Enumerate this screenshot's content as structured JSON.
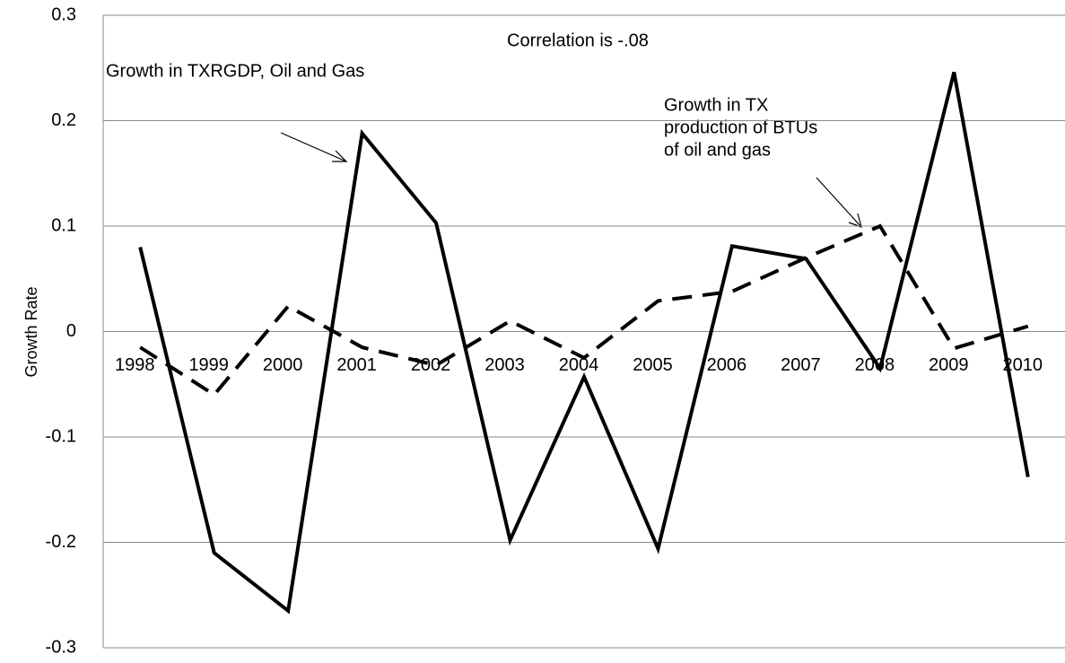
{
  "chart_data": {
    "type": "line",
    "y_label": "Growth Rate",
    "categories": [
      "1998",
      "1999",
      "2000",
      "2001",
      "2002",
      "2003",
      "2004",
      "2005",
      "2006",
      "2007",
      "2008",
      "2009",
      "2010"
    ],
    "series": [
      {
        "color": "#000000",
        "dash": "solid",
        "values": [
          0.08,
          -0.21,
          -0.265,
          0.188,
          0.103,
          -0.198,
          -0.043,
          -0.206,
          0.081,
          0.069,
          -0.035,
          0.246,
          -0.138
        ]
      },
      {
        "color": "#000000",
        "dash": "dashed",
        "values": [
          -0.015,
          -0.06,
          0.024,
          -0.015,
          -0.032,
          0.01,
          -0.025,
          0.029,
          0.038,
          0.07,
          0.1,
          -0.016,
          0.005
        ]
      }
    ],
    "ylim": [
      -0.3,
      0.3
    ],
    "yticks": [
      -0.3,
      -0.2,
      -0.1,
      0,
      0.1,
      0.2,
      0.3
    ],
    "grid": true,
    "annotations": [
      "Correlation is  -.08",
      "Growth in TXRGDP, Oil and Gas",
      "Growth in TX",
      "production of  BTUs",
      "of oil and gas"
    ]
  }
}
